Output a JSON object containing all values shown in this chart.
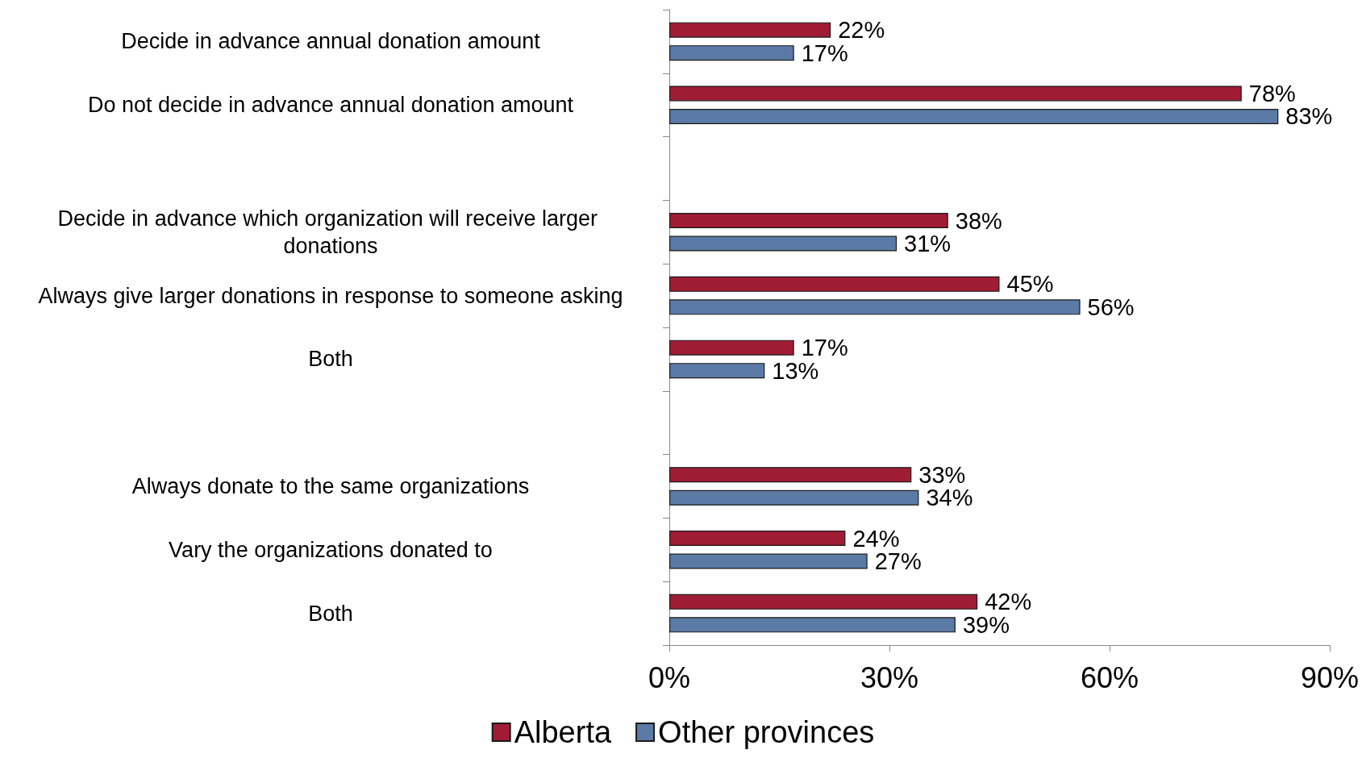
{
  "chart_data": {
    "type": "bar",
    "orientation": "horizontal",
    "categories": [
      "Decide in advance annual donation amount",
      "Do not decide in advance annual donation amount",
      null,
      "Decide in advance which organization will receive larger donations",
      "Always give larger donations in response to someone asking",
      "Both",
      null,
      "Always donate to the same organizations",
      "Vary the organizations donated to",
      "Both"
    ],
    "series": [
      {
        "name": "Alberta",
        "color": "#a01c34",
        "values": [
          22,
          78,
          null,
          38,
          45,
          17,
          null,
          33,
          24,
          42
        ],
        "value_labels": [
          "22%",
          "78%",
          null,
          "38%",
          "45%",
          "17%",
          null,
          "33%",
          "24%",
          "42%"
        ]
      },
      {
        "name": "Other provinces",
        "color": "#5b7aa6",
        "values": [
          17,
          83,
          null,
          31,
          56,
          13,
          null,
          34,
          27,
          39
        ],
        "value_labels": [
          "17%",
          "83%",
          null,
          "31%",
          "56%",
          "13%",
          null,
          "34%",
          "27%",
          "39%"
        ]
      }
    ],
    "xlim": [
      0,
      90
    ],
    "xticks": [
      {
        "value": 0,
        "label": "0%"
      },
      {
        "value": 30,
        "label": "30%"
      },
      {
        "value": 60,
        "label": "60%"
      },
      {
        "value": 90,
        "label": "90%"
      }
    ],
    "grid": false,
    "legend": "bottom"
  }
}
